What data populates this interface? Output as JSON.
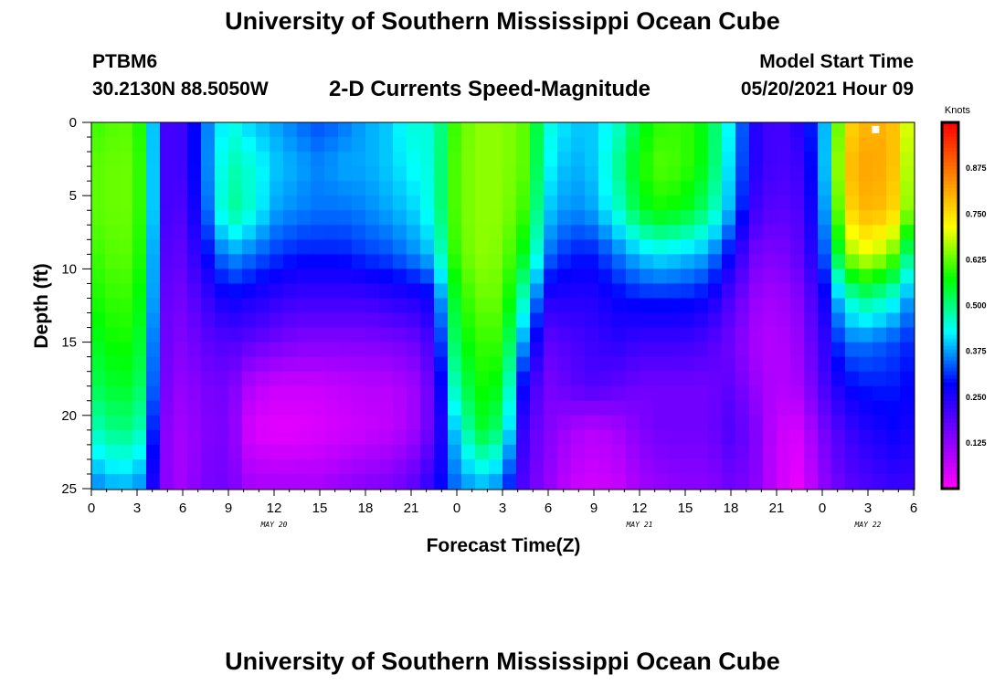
{
  "page": {
    "title_top": "University of Southern Mississippi Ocean Cube",
    "title_bottom": "University of Southern Mississippi Ocean Cube",
    "station_id": "PTBM6",
    "station_coords": "30.2130N  88.5050W",
    "plot_title": "2-D Currents Speed-Magnitude",
    "model_start_label": "Model Start Time",
    "model_start_value": "05/20/2021 Hour 09"
  },
  "chart_data": {
    "type": "heatmap",
    "title": "2-D Currents Speed-Magnitude",
    "xlabel": "Forecast Time(Z)",
    "ylabel": "Depth (ft)",
    "colorbar_label": "Knots",
    "x_hours_range": [
      0,
      54
    ],
    "x_tick_labels": [
      "0",
      "3",
      "6",
      "9",
      "12",
      "15",
      "18",
      "21",
      "0",
      "3",
      "6",
      "9",
      "12",
      "15",
      "18",
      "21",
      "0",
      "3",
      "6"
    ],
    "x_day_labels": [
      {
        "label": "MAY 20",
        "at_tick": 4
      },
      {
        "label": "MAY 21",
        "at_tick": 12
      },
      {
        "label": "MAY 22",
        "at_tick": 17
      }
    ],
    "y_range": [
      0,
      25
    ],
    "y_ticks": [
      0,
      5,
      10,
      15,
      20,
      25
    ],
    "y_inverted": true,
    "colorbar_range": [
      0,
      1.0
    ],
    "colorbar_ticks": [
      "0.125",
      "0.250",
      "0.375",
      "0.500",
      "0.625",
      "0.750",
      "0.875"
    ],
    "colormap": [
      "#ff00ff",
      "#8000ff",
      "#0000ff",
      "#00ffff",
      "#00ff00",
      "#ffff00",
      "#ff8000",
      "#ff0000"
    ],
    "depths_ft": [
      0,
      3,
      6,
      9,
      12,
      15,
      18,
      21,
      25
    ],
    "times_hr": [
      0,
      1.5,
      3,
      4.5,
      5,
      6,
      7.5,
      9,
      10.5,
      12,
      13.5,
      15,
      16.5,
      18,
      19.5,
      21,
      22.5,
      24,
      25.5,
      27,
      28.5,
      30,
      31.5,
      33,
      34.5,
      36,
      37.5,
      39,
      40.5,
      42,
      43.5,
      45,
      46.5,
      48,
      49.5,
      51,
      52.5,
      54
    ],
    "speed_knots": [
      [
        0.6,
        0.62,
        0.62,
        0.3,
        0.2,
        0.22,
        0.35,
        0.45,
        0.4,
        0.38,
        0.35,
        0.33,
        0.35,
        0.38,
        0.4,
        0.45,
        0.45,
        0.62,
        0.65,
        0.65,
        0.62,
        0.45,
        0.4,
        0.4,
        0.45,
        0.55,
        0.6,
        0.6,
        0.55,
        0.42,
        0.25,
        0.2,
        0.25,
        0.35,
        0.75,
        0.8,
        0.8,
        0.65
      ],
      [
        0.62,
        0.63,
        0.63,
        0.3,
        0.2,
        0.22,
        0.35,
        0.48,
        0.45,
        0.4,
        0.38,
        0.36,
        0.38,
        0.38,
        0.4,
        0.43,
        0.45,
        0.63,
        0.65,
        0.65,
        0.62,
        0.43,
        0.38,
        0.4,
        0.48,
        0.58,
        0.62,
        0.6,
        0.55,
        0.4,
        0.25,
        0.2,
        0.22,
        0.35,
        0.78,
        0.82,
        0.8,
        0.62
      ],
      [
        0.62,
        0.63,
        0.63,
        0.3,
        0.2,
        0.2,
        0.33,
        0.5,
        0.45,
        0.38,
        0.36,
        0.35,
        0.35,
        0.36,
        0.38,
        0.4,
        0.45,
        0.63,
        0.65,
        0.65,
        0.6,
        0.4,
        0.36,
        0.38,
        0.45,
        0.55,
        0.58,
        0.56,
        0.5,
        0.38,
        0.22,
        0.18,
        0.2,
        0.33,
        0.75,
        0.8,
        0.78,
        0.6
      ],
      [
        0.6,
        0.62,
        0.62,
        0.28,
        0.18,
        0.18,
        0.28,
        0.38,
        0.35,
        0.32,
        0.3,
        0.3,
        0.3,
        0.32,
        0.33,
        0.36,
        0.4,
        0.62,
        0.65,
        0.64,
        0.55,
        0.35,
        0.3,
        0.3,
        0.35,
        0.4,
        0.42,
        0.4,
        0.38,
        0.28,
        0.16,
        0.14,
        0.18,
        0.3,
        0.65,
        0.7,
        0.65,
        0.45
      ],
      [
        0.58,
        0.6,
        0.6,
        0.28,
        0.16,
        0.16,
        0.22,
        0.28,
        0.26,
        0.24,
        0.22,
        0.22,
        0.22,
        0.22,
        0.24,
        0.25,
        0.28,
        0.58,
        0.63,
        0.63,
        0.45,
        0.25,
        0.25,
        0.25,
        0.28,
        0.3,
        0.3,
        0.3,
        0.28,
        0.2,
        0.12,
        0.1,
        0.14,
        0.25,
        0.45,
        0.5,
        0.45,
        0.35
      ],
      [
        0.55,
        0.58,
        0.58,
        0.26,
        0.15,
        0.14,
        0.18,
        0.2,
        0.18,
        0.16,
        0.14,
        0.14,
        0.14,
        0.14,
        0.15,
        0.16,
        0.22,
        0.55,
        0.6,
        0.6,
        0.35,
        0.18,
        0.2,
        0.22,
        0.24,
        0.22,
        0.22,
        0.22,
        0.2,
        0.16,
        0.1,
        0.08,
        0.12,
        0.22,
        0.35,
        0.35,
        0.33,
        0.3
      ],
      [
        0.52,
        0.55,
        0.55,
        0.25,
        0.14,
        0.12,
        0.15,
        0.16,
        0.08,
        0.06,
        0.06,
        0.06,
        0.07,
        0.08,
        0.08,
        0.1,
        0.18,
        0.5,
        0.58,
        0.56,
        0.25,
        0.15,
        0.18,
        0.2,
        0.18,
        0.16,
        0.16,
        0.16,
        0.16,
        0.18,
        0.12,
        0.08,
        0.1,
        0.2,
        0.28,
        0.3,
        0.3,
        0.28
      ],
      [
        0.46,
        0.5,
        0.5,
        0.22,
        0.12,
        0.1,
        0.14,
        0.15,
        0.04,
        0.03,
        0.03,
        0.04,
        0.05,
        0.06,
        0.07,
        0.1,
        0.18,
        0.42,
        0.55,
        0.5,
        0.2,
        0.14,
        0.1,
        0.08,
        0.1,
        0.14,
        0.16,
        0.16,
        0.16,
        0.2,
        0.15,
        0.06,
        0.05,
        0.15,
        0.22,
        0.25,
        0.28,
        0.26
      ],
      [
        0.35,
        0.38,
        0.38,
        0.2,
        0.12,
        0.1,
        0.15,
        0.16,
        0.1,
        0.1,
        0.1,
        0.1,
        0.12,
        0.14,
        0.15,
        0.18,
        0.25,
        0.35,
        0.38,
        0.35,
        0.18,
        0.12,
        0.06,
        0.05,
        0.06,
        0.1,
        0.12,
        0.13,
        0.13,
        0.16,
        0.14,
        0.06,
        0.02,
        0.12,
        0.18,
        0.2,
        0.22,
        0.22
      ]
    ],
    "marker": {
      "x_hr": 51.5,
      "depth_ft": 0.3,
      "color": "#ffffff"
    }
  }
}
